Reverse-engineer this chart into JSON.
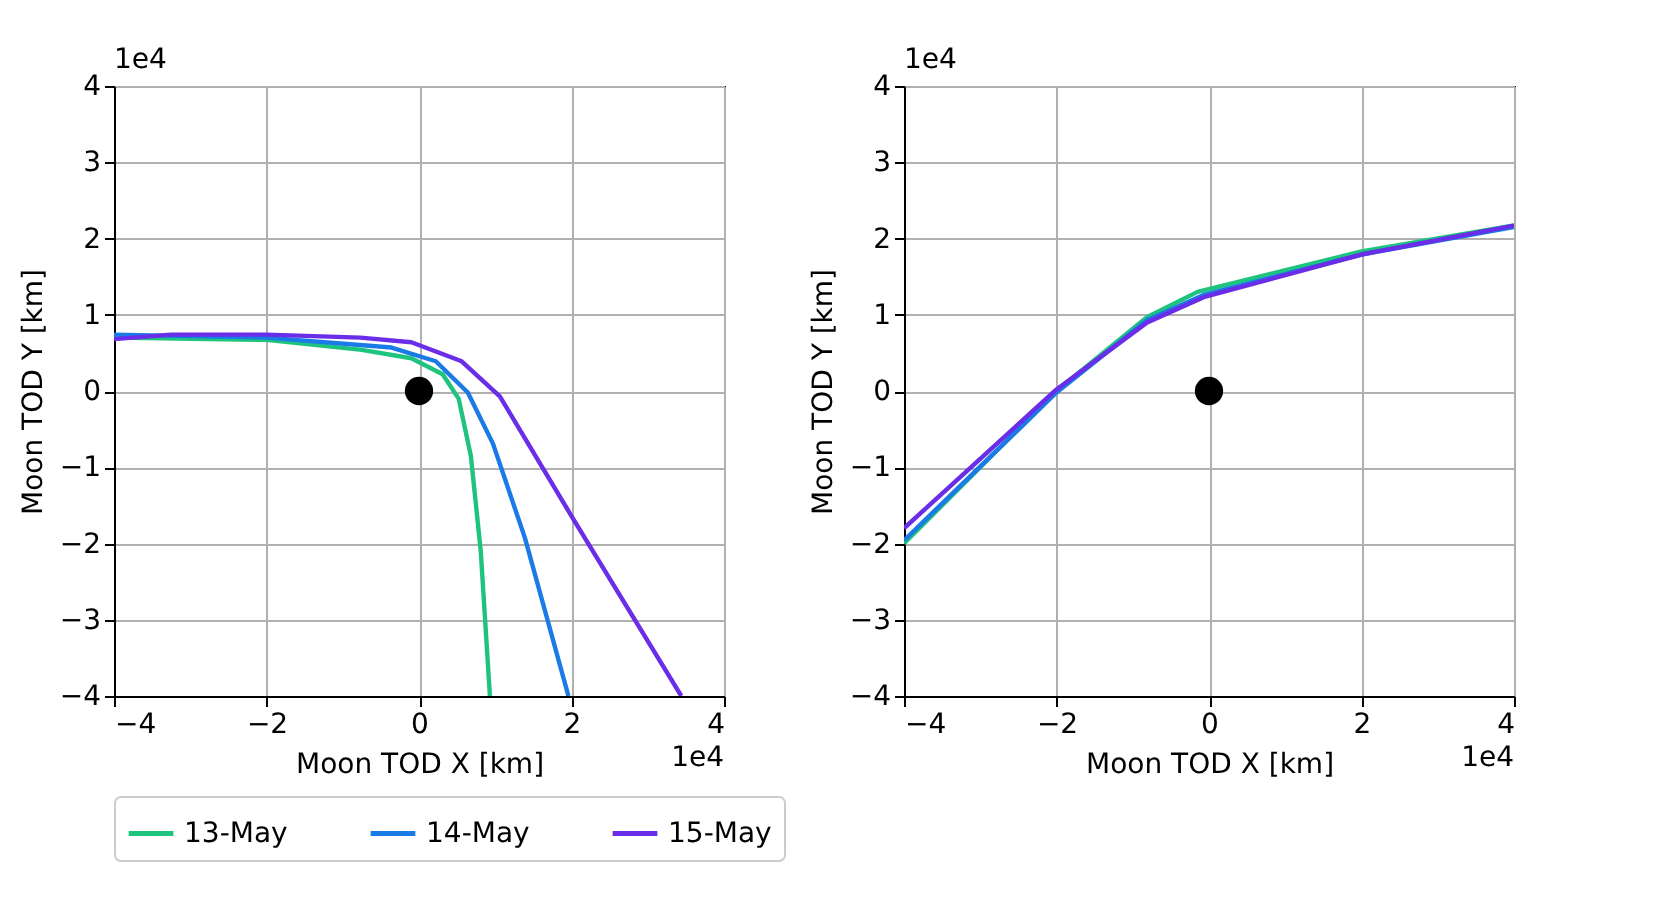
{
  "chart_data": [
    {
      "type": "line",
      "xlabel": "Moon TOD X [km]",
      "ylabel": "Moon TOD Y [km]",
      "annotations": [
        "1e4",
        "1e4"
      ],
      "xlim": [
        -4,
        4
      ],
      "ylim": [
        -4,
        4
      ],
      "xticks": [
        {
          "value": -4,
          "label": "−4"
        },
        {
          "value": -2,
          "label": "−2"
        },
        0,
        2,
        4
      ],
      "yticks": [
        {
          "value": -4,
          "label": "−4"
        },
        {
          "value": -3,
          "label": "−3"
        },
        {
          "value": -2,
          "label": "−2"
        },
        {
          "value": -1,
          "label": "−1"
        },
        0,
        1,
        2,
        3,
        4
      ],
      "grid": true,
      "legend": "bottom",
      "line_style": "solid",
      "series": [
        {
          "name": "13-May",
          "color": "#1ec47e",
          "x": [
            -4,
            -2,
            -0.75,
            -0.1,
            0.31,
            0.52,
            0.68,
            0.81,
            0.93
          ],
          "values": [
            0.7,
            0.67,
            0.54,
            0.43,
            0.22,
            -0.1,
            -0.85,
            -2.1,
            -4
          ]
        },
        {
          "name": "14-May",
          "color": "#1a7ae6",
          "x": [
            -4,
            -2,
            -0.36,
            0.22,
            0.64,
            0.97,
            1.39,
            1.96
          ],
          "values": [
            0.74,
            0.7,
            0.57,
            0.39,
            -0.02,
            -0.69,
            -1.93,
            -4
          ]
        },
        {
          "name": "15-May",
          "color": "#6a2de8",
          "x": [
            -4,
            -3.25,
            -2,
            -0.77,
            -0.1,
            0.56,
            1.06,
            2.0,
            3.44
          ],
          "values": [
            0.68,
            0.74,
            0.74,
            0.7,
            0.64,
            0.39,
            -0.07,
            -1.64,
            -4
          ]
        },
        {
          "type": "scatter",
          "marker": "circle",
          "color": "#000000",
          "x": [
            0
          ],
          "values": [
            0
          ]
        }
      ]
    },
    {
      "type": "line",
      "xlabel": "Moon TOD X [km]",
      "ylabel": "Moon TOD Y [km]",
      "annotations": [
        "1e4",
        "1e4"
      ],
      "xlim": [
        -4,
        4
      ],
      "ylim": [
        -4,
        4
      ],
      "xticks": [
        {
          "value": -4,
          "label": "−4"
        },
        {
          "value": -2,
          "label": "−2"
        },
        0,
        2,
        4
      ],
      "yticks": [
        {
          "value": -4,
          "label": "−4"
        },
        {
          "value": -3,
          "label": "−3"
        },
        {
          "value": -2,
          "label": "−2"
        },
        {
          "value": -1,
          "label": "−1"
        },
        0,
        1,
        2,
        3,
        4
      ],
      "grid": true,
      "legend": "bottom",
      "line_style": "solid",
      "series": [
        {
          "name": "13-May",
          "color": "#1ec47e",
          "x": [
            -4,
            -2,
            -0.81,
            -0.15,
            2,
            4
          ],
          "values": [
            -2,
            0,
            0.97,
            1.3,
            1.83,
            2.17
          ]
        },
        {
          "name": "14-May",
          "color": "#1a7ae6",
          "x": [
            -4,
            -2,
            -0.81,
            -0.07,
            2,
            4
          ],
          "values": [
            -1.96,
            -0.02,
            0.93,
            1.26,
            1.79,
            2.15
          ]
        },
        {
          "name": "15-May",
          "color": "#6a2de8",
          "x": [
            -4,
            -2,
            -0.81,
            -0.07,
            2,
            4
          ],
          "values": [
            -1.8,
            0.02,
            0.9,
            1.23,
            1.79,
            2.17
          ]
        },
        {
          "type": "scatter",
          "marker": "circle",
          "color": "#000000",
          "x": [
            0
          ],
          "values": [
            0
          ]
        }
      ]
    }
  ]
}
